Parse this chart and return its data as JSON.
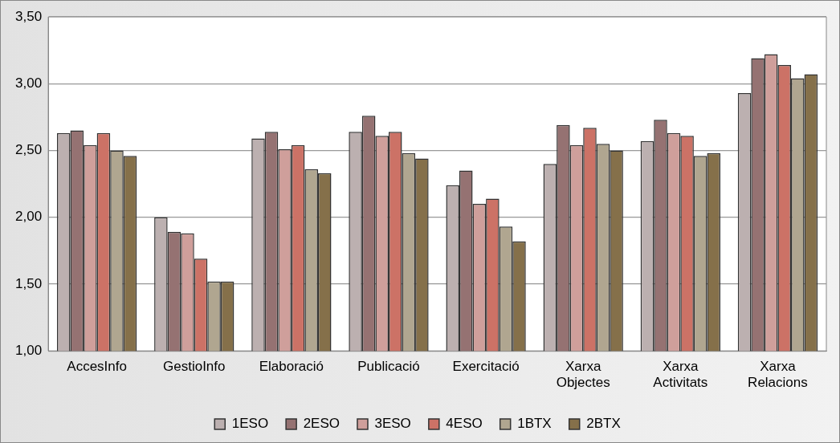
{
  "chart_data": {
    "type": "bar",
    "categories": [
      "AccesInfo",
      "GestioInfo",
      "Elaboració",
      "Publicació",
      "Exercitació",
      "Xarxa Objectes",
      "Xarxa Activitats",
      "Xarxa Relacions"
    ],
    "series": [
      {
        "name": "1ESO",
        "color": "#bcb0b0",
        "values": [
          2.63,
          2.0,
          2.59,
          2.64,
          2.24,
          2.4,
          2.57,
          2.93
        ]
      },
      {
        "name": "2ESO",
        "color": "#957272",
        "values": [
          2.65,
          1.89,
          2.64,
          2.76,
          2.35,
          2.69,
          2.73,
          3.19
        ]
      },
      {
        "name": "3ESO",
        "color": "#cf9f9b",
        "values": [
          2.54,
          1.88,
          2.51,
          2.61,
          2.1,
          2.54,
          2.63,
          3.22
        ]
      },
      {
        "name": "4ESO",
        "color": "#cc7266",
        "values": [
          2.63,
          1.69,
          2.54,
          2.64,
          2.14,
          2.67,
          2.61,
          3.14
        ]
      },
      {
        "name": "1BTX",
        "color": "#b0a690",
        "values": [
          2.5,
          1.52,
          2.36,
          2.48,
          1.93,
          2.55,
          2.46,
          3.04
        ]
      },
      {
        "name": "2BTX",
        "color": "#85704a",
        "values": [
          2.46,
          1.52,
          2.33,
          2.44,
          1.82,
          2.5,
          2.48,
          3.07
        ]
      }
    ],
    "ylim": [
      1,
      3.5
    ],
    "yticks": [
      {
        "value": 1,
        "label": "1,00"
      },
      {
        "value": 1.5,
        "label": "1,50"
      },
      {
        "value": 2,
        "label": "2,00"
      },
      {
        "value": 2.5,
        "label": "2,50"
      },
      {
        "value": 3,
        "label": "3,00"
      },
      {
        "value": 3.5,
        "label": "3,50"
      }
    ],
    "grid": "y",
    "legend": "bottom"
  }
}
